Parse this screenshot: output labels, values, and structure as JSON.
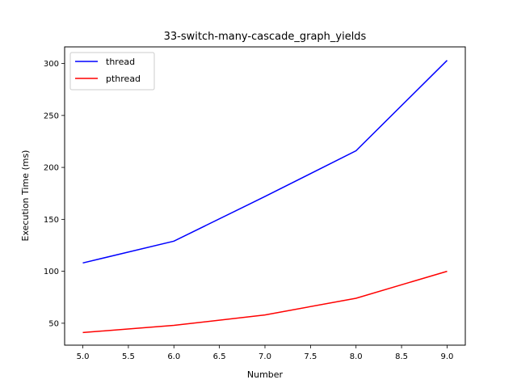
{
  "chart_data": {
    "type": "line",
    "title": "33-switch-many-cascade_graph_yields",
    "xlabel": "Number",
    "ylabel": "Execution Time (ms)",
    "x": [
      5.0,
      6.0,
      7.0,
      8.0,
      9.0
    ],
    "xlim": [
      4.8,
      9.2
    ],
    "ylim": [
      28.9,
      316.0
    ],
    "xticks": [
      5.0,
      5.5,
      6.0,
      6.5,
      7.0,
      7.5,
      8.0,
      8.5,
      9.0
    ],
    "xtick_labels": [
      "5.0",
      "5.5",
      "6.0",
      "6.5",
      "7.0",
      "7.5",
      "8.0",
      "8.5",
      "9.0"
    ],
    "yticks": [
      50,
      100,
      150,
      200,
      250,
      300
    ],
    "ytick_labels": [
      "50",
      "100",
      "150",
      "200",
      "250",
      "300"
    ],
    "grid": false,
    "legend_position": "top-left",
    "series": [
      {
        "name": "thread",
        "color": "#0000ff",
        "values": [
          108,
          129,
          172,
          216,
          303
        ]
      },
      {
        "name": "pthread",
        "color": "#ff0000",
        "values": [
          41,
          48,
          58,
          74,
          100
        ]
      }
    ]
  }
}
